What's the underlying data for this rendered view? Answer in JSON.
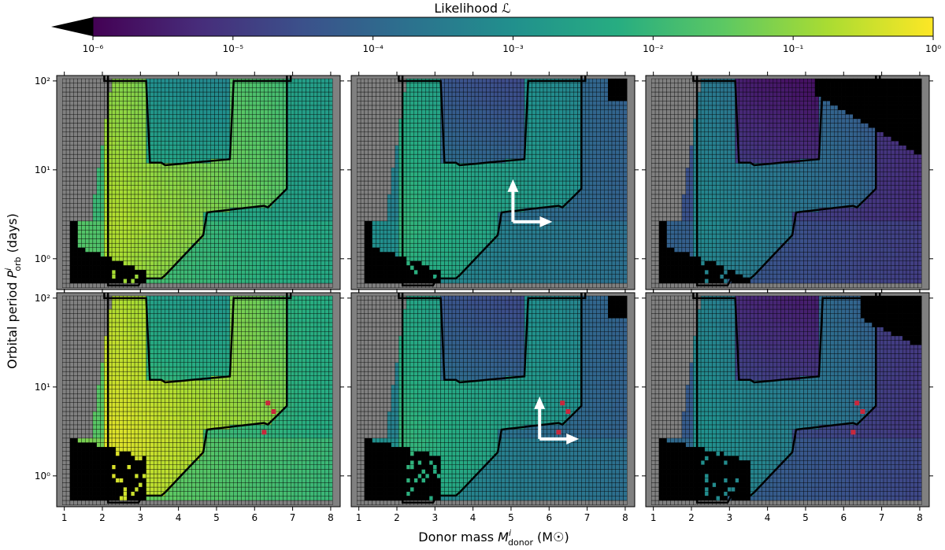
{
  "chart_data": {
    "type": "heatmap",
    "colorbar": {
      "label": "Likelihood ℒ",
      "scale": "log",
      "range": [
        1e-06,
        1
      ],
      "tick_labels": [
        "10⁻⁶",
        "10⁻⁵",
        "10⁻⁴",
        "10⁻³",
        "10⁻²",
        "10⁻¹",
        "10⁰"
      ],
      "extend": "min",
      "colormap": [
        "#440154",
        "#472c7a",
        "#3b518b",
        "#2c718e",
        "#21908d",
        "#27ad81",
        "#5cc863",
        "#aadc32",
        "#fde725"
      ],
      "below_range_color": "#000000",
      "no_data_color": "#808080"
    },
    "xlabel": "Donor mass Mⁱdonor (M☉)",
    "xlabel_parts": {
      "main": "Donor mass ",
      "sym": "M",
      "sup": "i",
      "sub": "donor",
      "unit": " (M☉)"
    },
    "ylabel_parts": {
      "main": "Orbital period ",
      "sym": "P",
      "sup": "i",
      "sub": "orb",
      "unit": "  (days)"
    },
    "xlim": [
      0.8,
      8.25
    ],
    "x_ticks": [
      "1",
      "2",
      "3",
      "4",
      "5",
      "6",
      "7",
      "8"
    ],
    "yscale": "log",
    "ylim_days": [
      0.45,
      115
    ],
    "y_tick_labels": [
      "10⁰",
      "10¹",
      "10²"
    ],
    "grid": {
      "columns": 71,
      "rows": 47
    },
    "panels": [
      {
        "row": 0,
        "col": 0,
        "peak_log10": -0.7,
        "arrow": false
      },
      {
        "row": 0,
        "col": 1,
        "peak_log10": -2.1,
        "arrow": true
      },
      {
        "row": 0,
        "col": 2,
        "peak_log10": -3.2,
        "arrow": false
      },
      {
        "row": 1,
        "col": 0,
        "peak_log10": -0.3,
        "arrow": false
      },
      {
        "row": 1,
        "col": 1,
        "peak_log10": -2.1,
        "arrow": true
      },
      {
        "row": 1,
        "col": 2,
        "peak_log10": -3.0,
        "arrow": false
      }
    ],
    "red_markers_bottom_row": [
      {
        "mass": 6.35,
        "period_days": 6.6
      },
      {
        "mass": 6.5,
        "period_days": 5.3
      },
      {
        "mass": 6.25,
        "period_days": 3.1
      }
    ]
  }
}
